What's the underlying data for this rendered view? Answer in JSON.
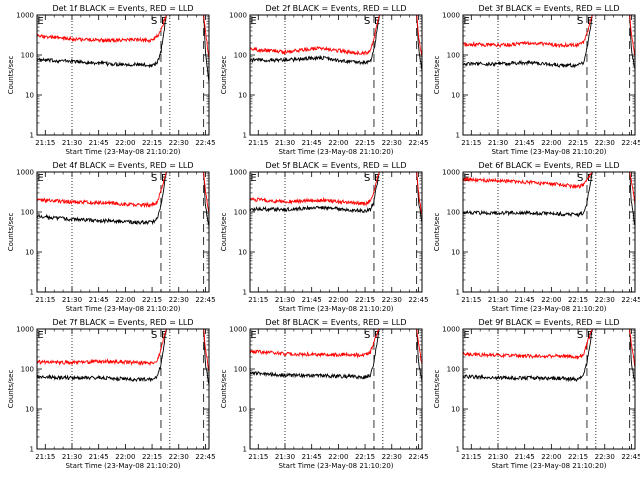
{
  "chart_data": [
    {
      "type": "line",
      "title": "Det 1f BLACK = Events, RED = LLD",
      "xlabel": "Start Time (23-May-08 21:10:20)",
      "ylabel": "Counts/sec",
      "y_scale": "log",
      "ylim": [
        1,
        1000
      ],
      "x_range": [
        "21:10:20",
        "22:47"
      ],
      "x_ticks": [
        "21:15",
        "21:30",
        "21:45",
        "22:00",
        "22:15",
        "22:30",
        "22:45"
      ],
      "y_ticks": [
        "1",
        "10",
        "100",
        "1000"
      ],
      "markers": {
        "E": "21:10",
        "S": "22:20",
        "E2": "22:25"
      },
      "annotations": [
        "E",
        "S",
        "E"
      ],
      "grid": false,
      "series": [
        {
          "name": "BLACK = Events",
          "color": "#000000",
          "x": [
            "21:10",
            "21:30",
            "21:50",
            "22:05",
            "22:15",
            "22:18",
            "22:20",
            "22:23",
            "22:31",
            "22:44",
            "22:45",
            "22:47"
          ],
          "y": [
            75,
            70,
            60,
            58,
            55,
            65,
            120,
            1000,
            1000,
            1000,
            120,
            20
          ]
        },
        {
          "name": "RED = LLD",
          "color": "#ff0000",
          "x": [
            "21:10",
            "21:30",
            "21:50",
            "22:05",
            "22:15",
            "22:18",
            "22:20",
            "22:23",
            "22:31",
            "22:44",
            "22:45",
            "22:47"
          ],
          "y": [
            300,
            250,
            230,
            240,
            230,
            300,
            400,
            1000,
            1000,
            1000,
            400,
            80
          ]
        }
      ]
    },
    {
      "type": "line",
      "title": "Det 2f BLACK = Events, RED = LLD",
      "xlabel": "Start Time (23-May-08 21:10:20)",
      "ylabel": "Counts/sec",
      "y_scale": "log",
      "ylim": [
        1,
        1000
      ],
      "x_range": [
        "21:10:20",
        "22:47"
      ],
      "x_ticks": [
        "21:15",
        "21:30",
        "21:45",
        "22:00",
        "22:15",
        "22:30",
        "22:45"
      ],
      "y_ticks": [
        "1",
        "10",
        "100",
        "1000"
      ],
      "markers": {
        "E": "21:10",
        "S": "22:20",
        "E2": "22:25"
      },
      "annotations": [
        "E",
        "S",
        "E"
      ],
      "grid": false,
      "series": [
        {
          "name": "BLACK = Events",
          "color": "#000000",
          "x": [
            "21:10",
            "21:30",
            "21:50",
            "22:05",
            "22:15",
            "22:18",
            "22:20",
            "22:23",
            "22:31",
            "22:44",
            "22:45",
            "22:47"
          ],
          "y": [
            75,
            75,
            85,
            70,
            65,
            70,
            130,
            1000,
            1000,
            1000,
            160,
            40
          ]
        },
        {
          "name": "RED = LLD",
          "color": "#ff0000",
          "x": [
            "21:10",
            "21:30",
            "21:50",
            "22:05",
            "22:15",
            "22:18",
            "22:20",
            "22:23",
            "22:31",
            "22:44",
            "22:45",
            "22:47"
          ],
          "y": [
            140,
            120,
            150,
            120,
            110,
            130,
            250,
            1000,
            1000,
            1000,
            300,
            80
          ]
        }
      ]
    },
    {
      "type": "line",
      "title": "Det 3f BLACK = Events, RED = LLD",
      "xlabel": "Start Time (23-May-08 21:10:20)",
      "ylabel": "Counts/sec",
      "y_scale": "log",
      "ylim": [
        1,
        1000
      ],
      "x_range": [
        "21:10:20",
        "22:47"
      ],
      "x_ticks": [
        "21:15",
        "21:30",
        "21:45",
        "22:00",
        "22:15",
        "22:30",
        "22:45"
      ],
      "y_ticks": [
        "1",
        "10",
        "100",
        "1000"
      ],
      "markers": {
        "E": "21:10",
        "S": "22:20",
        "E2": "22:25"
      },
      "annotations": [
        "E",
        "S",
        "E"
      ],
      "grid": false,
      "series": [
        {
          "name": "BLACK = Events",
          "color": "#000000",
          "x": [
            "21:10",
            "21:30",
            "21:50",
            "22:05",
            "22:15",
            "22:18",
            "22:20",
            "22:23",
            "22:31",
            "22:44",
            "22:45",
            "22:47"
          ],
          "y": [
            60,
            60,
            65,
            55,
            55,
            65,
            140,
            1000,
            1000,
            1000,
            140,
            40
          ]
        },
        {
          "name": "RED = LLD",
          "color": "#ff0000",
          "x": [
            "21:10",
            "21:30",
            "21:50",
            "22:05",
            "22:15",
            "22:18",
            "22:20",
            "22:23",
            "22:31",
            "22:44",
            "22:45",
            "22:47"
          ],
          "y": [
            190,
            175,
            200,
            175,
            180,
            210,
            350,
            1000,
            1000,
            1000,
            350,
            90
          ]
        }
      ]
    },
    {
      "type": "line",
      "title": "Det 4f BLACK = Events, RED = LLD",
      "xlabel": "Start Time (23-May-08 21:10:20)",
      "ylabel": "Counts/sec",
      "y_scale": "log",
      "ylim": [
        1,
        1000
      ],
      "x_range": [
        "21:10:20",
        "22:47"
      ],
      "x_ticks": [
        "21:15",
        "21:30",
        "21:45",
        "22:00",
        "22:15",
        "22:30",
        "22:45"
      ],
      "y_ticks": [
        "1",
        "10",
        "100",
        "1000"
      ],
      "markers": {
        "E": "21:10",
        "S": "22:20",
        "E2": "22:25"
      },
      "annotations": [
        "E",
        "S",
        "E"
      ],
      "grid": false,
      "series": [
        {
          "name": "BLACK = Events",
          "color": "#000000",
          "x": [
            "21:10",
            "21:30",
            "21:50",
            "22:05",
            "22:15",
            "22:18",
            "22:20",
            "22:23",
            "22:31",
            "22:44",
            "22:45",
            "22:47"
          ],
          "y": [
            80,
            65,
            60,
            55,
            55,
            70,
            140,
            1000,
            1000,
            1000,
            140,
            40
          ]
        },
        {
          "name": "RED = LLD",
          "color": "#ff0000",
          "x": [
            "21:10",
            "21:30",
            "21:50",
            "22:05",
            "22:15",
            "22:18",
            "22:20",
            "22:23",
            "22:31",
            "22:44",
            "22:45",
            "22:47"
          ],
          "y": [
            200,
            180,
            170,
            150,
            150,
            180,
            350,
            1000,
            1000,
            1000,
            350,
            90
          ]
        }
      ]
    },
    {
      "type": "line",
      "title": "Det 5f BLACK = Events, RED = LLD",
      "xlabel": "Start Time (23-May-08 21:10:20)",
      "ylabel": "Counts/sec",
      "y_scale": "log",
      "ylim": [
        1,
        1000
      ],
      "x_range": [
        "21:10:20",
        "22:47"
      ],
      "x_ticks": [
        "21:15",
        "21:30",
        "21:45",
        "22:00",
        "22:15",
        "22:30",
        "22:45"
      ],
      "y_ticks": [
        "1",
        "10",
        "100",
        "1000"
      ],
      "markers": {
        "E": "21:10",
        "S": "22:20",
        "E2": "22:25"
      },
      "annotations": [
        "E",
        "S",
        "E"
      ],
      "grid": false,
      "series": [
        {
          "name": "BLACK = Events",
          "color": "#000000",
          "x": [
            "21:10",
            "21:30",
            "21:50",
            "22:05",
            "22:15",
            "22:18",
            "22:20",
            "22:23",
            "22:31",
            "22:44",
            "22:45",
            "22:47"
          ],
          "y": [
            120,
            115,
            130,
            115,
            105,
            115,
            190,
            1000,
            1000,
            1000,
            200,
            50
          ]
        },
        {
          "name": "RED = LLD",
          "color": "#ff0000",
          "x": [
            "21:10",
            "21:30",
            "21:50",
            "22:05",
            "22:15",
            "22:18",
            "22:20",
            "22:23",
            "22:31",
            "22:44",
            "22:45",
            "22:47"
          ],
          "y": [
            210,
            180,
            200,
            175,
            160,
            180,
            320,
            1000,
            1000,
            1000,
            300,
            80
          ]
        }
      ]
    },
    {
      "type": "line",
      "title": "Det 6f BLACK = Events, RED = LLD",
      "xlabel": "Start Time (23-May-08 21:10:20)",
      "ylabel": "Counts/sec",
      "y_scale": "log",
      "ylim": [
        1,
        1000
      ],
      "x_range": [
        "21:10:20",
        "22:47"
      ],
      "x_ticks": [
        "21:15",
        "21:30",
        "21:45",
        "22:00",
        "22:15",
        "22:30",
        "22:45"
      ],
      "y_ticks": [
        "1",
        "10",
        "100",
        "1000"
      ],
      "markers": {
        "E": "21:10",
        "S": "22:20",
        "E2": "22:25"
      },
      "annotations": [
        "E",
        "S",
        "E"
      ],
      "grid": false,
      "series": [
        {
          "name": "BLACK = Events",
          "color": "#000000",
          "x": [
            "21:10",
            "21:30",
            "21:50",
            "22:05",
            "22:15",
            "22:18",
            "22:20",
            "22:23",
            "22:31",
            "22:44",
            "22:45",
            "22:47"
          ],
          "y": [
            95,
            95,
            95,
            90,
            85,
            95,
            170,
            1000,
            1000,
            1000,
            170,
            45
          ]
        },
        {
          "name": "RED = LLD",
          "color": "#ff0000",
          "x": [
            "21:10",
            "21:30",
            "21:50",
            "22:05",
            "22:15",
            "22:18",
            "22:20",
            "22:23",
            "22:31",
            "22:44",
            "22:45",
            "22:47"
          ],
          "y": [
            650,
            600,
            540,
            480,
            430,
            470,
            650,
            1000,
            1000,
            1000,
            600,
            150
          ]
        }
      ]
    },
    {
      "type": "line",
      "title": "Det 7f BLACK = Events, RED = LLD",
      "xlabel": "Start Time (23-May-08 21:10:20)",
      "ylabel": "Counts/sec",
      "y_scale": "log",
      "ylim": [
        1,
        1000
      ],
      "x_range": [
        "21:10:20",
        "22:47"
      ],
      "x_ticks": [
        "21:15",
        "21:30",
        "21:45",
        "22:00",
        "22:15",
        "22:30",
        "22:45"
      ],
      "y_ticks": [
        "1",
        "10",
        "100",
        "1000"
      ],
      "markers": {
        "E": "21:10",
        "S": "22:20",
        "E2": "22:25"
      },
      "annotations": [
        "E",
        "S",
        "E"
      ],
      "grid": false,
      "series": [
        {
          "name": "BLACK = Events",
          "color": "#000000",
          "x": [
            "21:10",
            "21:30",
            "21:50",
            "22:05",
            "22:15",
            "22:18",
            "22:20",
            "22:23",
            "22:31",
            "22:44",
            "22:45",
            "22:47"
          ],
          "y": [
            65,
            60,
            60,
            55,
            55,
            65,
            130,
            1000,
            1000,
            1000,
            130,
            40
          ]
        },
        {
          "name": "RED = LLD",
          "color": "#ff0000",
          "x": [
            "21:10",
            "21:30",
            "21:50",
            "22:05",
            "22:15",
            "22:18",
            "22:20",
            "22:23",
            "22:31",
            "22:44",
            "22:45",
            "22:47"
          ],
          "y": [
            150,
            145,
            155,
            145,
            140,
            160,
            320,
            1000,
            1000,
            1000,
            320,
            80
          ]
        }
      ]
    },
    {
      "type": "line",
      "title": "Det 8f BLACK = Events, RED = LLD",
      "xlabel": "Start Time (23-May-08 21:10:20)",
      "ylabel": "Counts/sec",
      "y_scale": "log",
      "ylim": [
        1,
        1000
      ],
      "x_range": [
        "21:10:20",
        "22:47"
      ],
      "x_ticks": [
        "21:15",
        "21:30",
        "21:45",
        "22:00",
        "22:15",
        "22:30",
        "22:45"
      ],
      "y_ticks": [
        "1",
        "10",
        "100",
        "1000"
      ],
      "markers": {
        "E": "21:10",
        "S": "22:20",
        "E2": "22:25"
      },
      "annotations": [
        "E",
        "S",
        "E"
      ],
      "grid": false,
      "series": [
        {
          "name": "BLACK = Events",
          "color": "#000000",
          "x": [
            "21:10",
            "21:30",
            "21:50",
            "22:05",
            "22:15",
            "22:18",
            "22:20",
            "22:23",
            "22:31",
            "22:44",
            "22:45",
            "22:47"
          ],
          "y": [
            80,
            70,
            68,
            65,
            62,
            70,
            150,
            1000,
            1000,
            1000,
            150,
            45
          ]
        },
        {
          "name": "RED = LLD",
          "color": "#ff0000",
          "x": [
            "21:10",
            "21:30",
            "21:50",
            "22:05",
            "22:15",
            "22:18",
            "22:20",
            "22:23",
            "22:31",
            "22:44",
            "22:45",
            "22:47"
          ],
          "y": [
            280,
            240,
            230,
            230,
            220,
            260,
            480,
            1000,
            1000,
            1000,
            450,
            120
          ]
        }
      ]
    },
    {
      "type": "line",
      "title": "Det 9f BLACK = Events, RED = LLD",
      "xlabel": "Start Time (23-May-08 21:10:20)",
      "ylabel": "Counts/sec",
      "y_scale": "log",
      "ylim": [
        1,
        1000
      ],
      "x_range": [
        "21:10:20",
        "22:47"
      ],
      "x_ticks": [
        "21:15",
        "21:30",
        "21:45",
        "22:00",
        "22:15",
        "22:30",
        "22:45"
      ],
      "y_ticks": [
        "1",
        "10",
        "100",
        "1000"
      ],
      "markers": {
        "E": "21:10",
        "S": "22:20",
        "E2": "22:25"
      },
      "annotations": [
        "E",
        "S",
        "E"
      ],
      "grid": false,
      "series": [
        {
          "name": "BLACK = Events",
          "color": "#000000",
          "x": [
            "21:10",
            "21:30",
            "21:50",
            "22:05",
            "22:15",
            "22:18",
            "22:20",
            "22:23",
            "22:31",
            "22:44",
            "22:45",
            "22:47"
          ],
          "y": [
            65,
            60,
            60,
            58,
            55,
            70,
            140,
            1000,
            1000,
            1000,
            140,
            45
          ]
        },
        {
          "name": "RED = LLD",
          "color": "#ff0000",
          "x": [
            "21:10",
            "21:30",
            "21:50",
            "22:05",
            "22:15",
            "22:18",
            "22:20",
            "22:23",
            "22:31",
            "22:44",
            "22:45",
            "22:47"
          ],
          "y": [
            240,
            220,
            210,
            210,
            200,
            230,
            430,
            1000,
            1000,
            1000,
            430,
            110
          ]
        }
      ]
    }
  ]
}
